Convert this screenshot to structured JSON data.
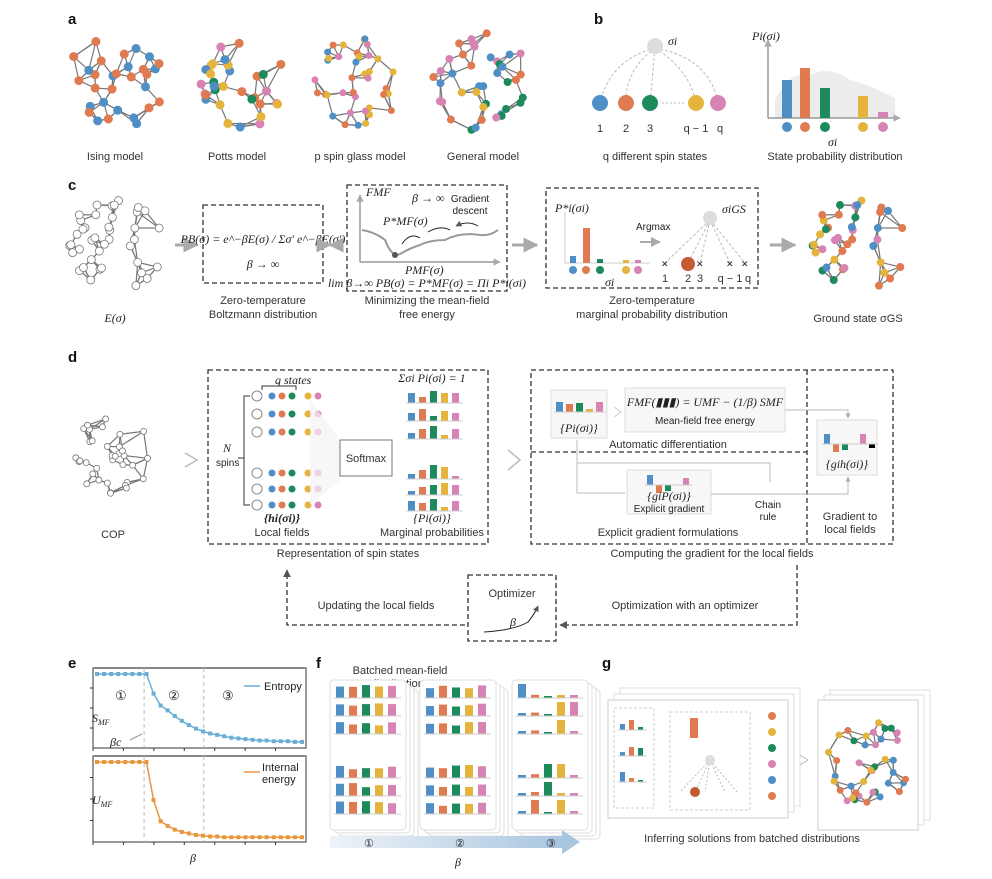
{
  "colors": {
    "blue": "#4f8fc6",
    "orange": "#e07a50",
    "green": "#1d8a5c",
    "yellow": "#e4b43c",
    "pink": "#d784b4",
    "edge": "#7a7a7a",
    "entropy": "#6aaed6",
    "energy": "#e8973f"
  },
  "panel_a": {
    "label": "a",
    "models": [
      "Ising model",
      "Potts model",
      "p spin glass model",
      "General model"
    ]
  },
  "panel_b": {
    "label": "b",
    "sigma": "σi",
    "states": [
      "1",
      "2",
      "3",
      "q − 1",
      "q"
    ],
    "caption_left": "q different spin states",
    "ylabel": "Pi(σi)",
    "xlabel": "σi",
    "caption_right": "State probability distribution"
  },
  "panel_c": {
    "label": "c",
    "energy": "E(σ)",
    "boltzmann_formula": "PB(σ) = e^−βE(σ) / Σσ′ e^−βE(σ′)",
    "beta_limit": "β → ∞",
    "caption1": [
      "Zero-temperature",
      "Boltzmann distribution"
    ],
    "fmf": "FMF",
    "pmf_star": "P*MF(σ)",
    "gradient_descent": [
      "Gradient",
      "descent"
    ],
    "pmf_axis": "PMF(σ)",
    "limit_formula": "lim β→∞ PB(σ) = P*MF(σ) = Πi P*i(σi)",
    "caption2": [
      "Minimizing the mean-field",
      "free energy"
    ],
    "pstar": "P*i(σi)",
    "argmax": "Argmax",
    "sigma_gs": "σiGS",
    "sigma_axis": "σi",
    "states": [
      "1",
      "2",
      "3",
      "q − 1",
      "q"
    ],
    "caption3": [
      "Zero-temperature",
      "marginal probability distribution"
    ],
    "ground_state": "Ground state σGS"
  },
  "panel_d": {
    "label": "d",
    "cop": "COP",
    "q_states": "q states",
    "n_spins": [
      "N",
      "spins"
    ],
    "softmax": "Softmax",
    "sum_constraint": "Σσi Pi(σi) = 1",
    "local_fields_sym": "{hi(σi)}",
    "local_fields": "Local fields",
    "marg_sym": "{Pi(σi)}",
    "marg": "Marginal probabilities",
    "caption_left": "Representation of spin states",
    "p_sym": "{Pi(σi)}",
    "free_energy_formula": "FMF(▮▮▮) = UMF − (1/β) SMF",
    "free_energy": "Mean-field free energy",
    "auto_diff": "Automatic differentiation",
    "gp_sym": "{giP(σi)}",
    "explicit_gradient": "Explicit gradient",
    "chain_rule": [
      "Chain",
      "rule"
    ],
    "explicit_formulations": "Explicit gradient formulations",
    "gh_sym": "{gih(σi)}",
    "grad_local": [
      "Gradient to",
      "local fields"
    ],
    "caption_right": "Computing the gradient for the local fields",
    "optimizer": "Optimizer",
    "beta": "β",
    "updating": "Updating the local fields",
    "optimization": "Optimization with an optimizer"
  },
  "panel_e": {
    "label": "e",
    "beta_c": "βc",
    "regions": [
      "①",
      "②",
      "③"
    ],
    "xlabel": "β"
  },
  "panel_f": {
    "label": "f",
    "batched": [
      "Batched mean-field",
      "distributions"
    ],
    "stages": [
      "①",
      "②",
      "③"
    ],
    "xlabel": "β"
  },
  "panel_g": {
    "label": "g",
    "caption": "Inferring solutions from batched distributions"
  },
  "chart_data": [
    {
      "type": "line",
      "title": "",
      "xlabel": "β",
      "ylabel": "SMF",
      "legend": "top-right",
      "series": [
        {
          "name": "Entropy",
          "values": [
            1,
            1,
            1,
            1,
            1,
            1,
            1,
            1,
            0.72,
            0.55,
            0.48,
            0.4,
            0.33,
            0.27,
            0.22,
            0.18,
            0.15,
            0.13,
            0.11,
            0.09,
            0.08,
            0.07,
            0.06,
            0.05,
            0.05,
            0.04,
            0.04,
            0.04,
            0.03,
            0.03
          ]
        }
      ],
      "annotations": [
        "βc",
        "①",
        "②",
        "③"
      ],
      "ylim": [
        0,
        1.05
      ]
    },
    {
      "type": "line",
      "title": "",
      "xlabel": "β",
      "ylabel": "UMF",
      "legend": "top-right",
      "series": [
        {
          "name": "Internal energy",
          "values": [
            1,
            1,
            1,
            1,
            1,
            1,
            1,
            1,
            0.5,
            0.22,
            0.16,
            0.11,
            0.08,
            0.06,
            0.04,
            0.03,
            0.02,
            0.02,
            0.01,
            0.01,
            0.01,
            0.01,
            0.01,
            0.01,
            0.01,
            0.01,
            0.01,
            0.01,
            0.01,
            0.01
          ]
        }
      ],
      "ylim": [
        0,
        1.05
      ]
    }
  ]
}
